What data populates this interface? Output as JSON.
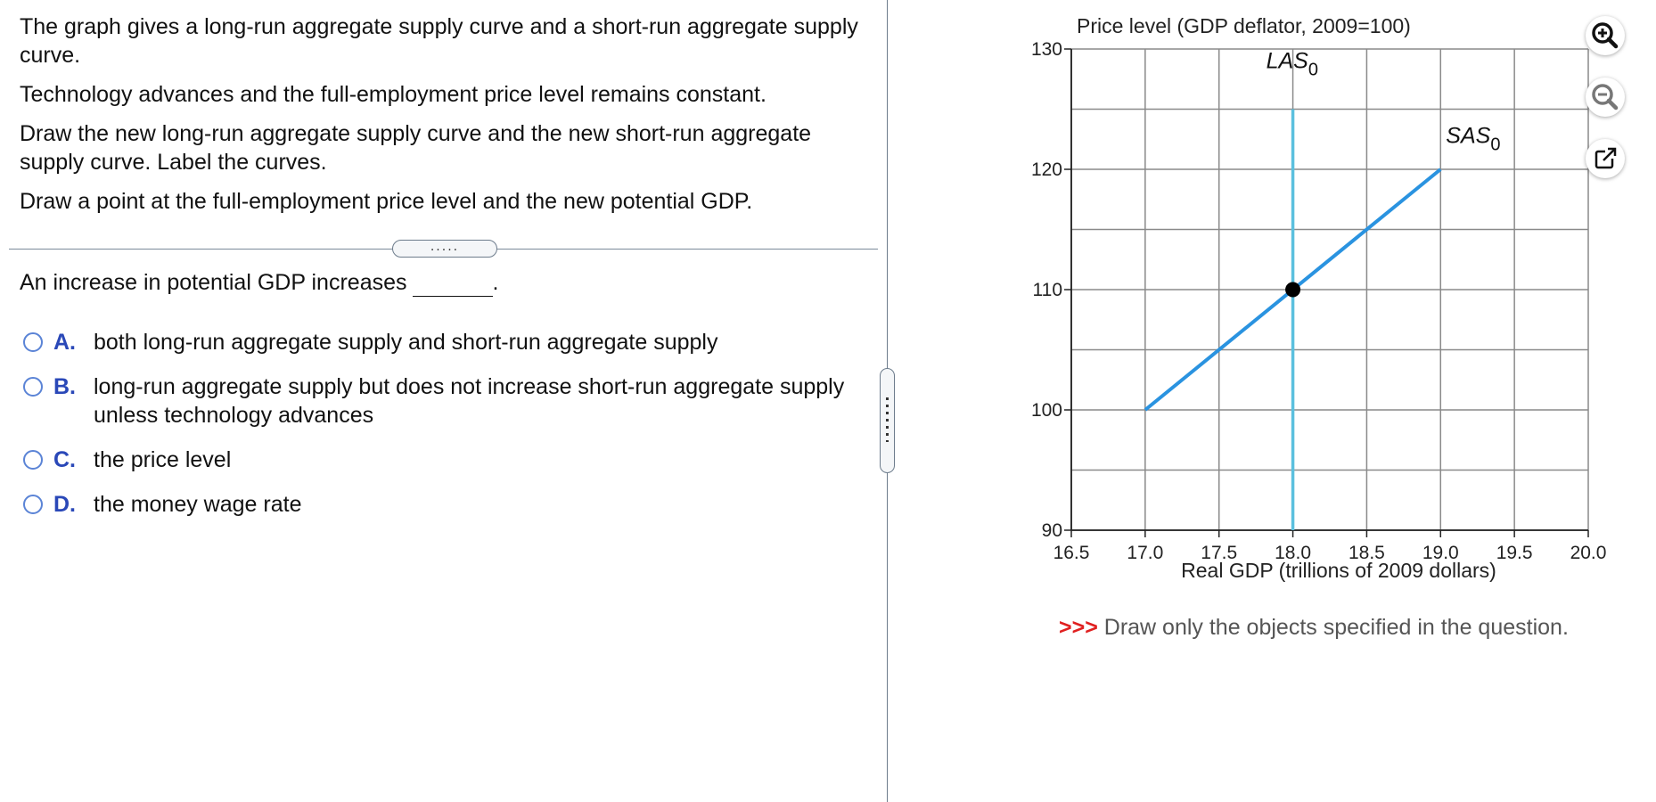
{
  "prompt": {
    "p1": "The graph gives a long-run aggregate supply curve and a short-run aggregate supply curve.",
    "p2": "Technology advances and the full-employment price level remains constant.",
    "p3": "Draw the new long-run aggregate supply curve and the new short-run aggregate supply curve. Label the curves.",
    "p4": "Draw a point at the full-employment price level and the new potential GDP."
  },
  "divider_handle": ".....",
  "question": {
    "stem": "An increase in potential GDP increases",
    "end_punct": "."
  },
  "choices": [
    {
      "letter": "A.",
      "text": "both long-run aggregate supply and short-run aggregate supply"
    },
    {
      "letter": "B.",
      "text": "long-run aggregate supply but does not increase short-run aggregate supply unless technology advances"
    },
    {
      "letter": "C.",
      "text": "the price level"
    },
    {
      "letter": "D.",
      "text": "the money wage rate"
    }
  ],
  "graph_note": {
    "arrow": ">>>",
    "text": "Draw only the objects specified in the question."
  },
  "tools": [
    {
      "icon": "zoom-in-icon"
    },
    {
      "icon": "zoom-out-icon"
    },
    {
      "icon": "popout-icon"
    }
  ],
  "chart_data": {
    "type": "line",
    "title": "",
    "ylabel": "Price level (GDP deflator, 2009=100)",
    "xlabel": "Real GDP (trillions of 2009 dollars)",
    "xlim": [
      16.5,
      20.0
    ],
    "ylim": [
      90,
      130
    ],
    "x_ticks": [
      "16.5",
      "17.0",
      "17.5",
      "18.0",
      "18.5",
      "19.0",
      "19.5",
      "20.0"
    ],
    "y_ticks": [
      "90",
      "100",
      "110",
      "120",
      "130"
    ],
    "grid": true,
    "colors": {
      "las": "#5bc0de",
      "sas": "#2a93e0",
      "point": "#000000"
    },
    "series": [
      {
        "name": "LAS",
        "name_subscript": "0",
        "points": [
          [
            18.0,
            90
          ],
          [
            18.0,
            125
          ]
        ]
      },
      {
        "name": "SAS",
        "name_subscript": "0",
        "points": [
          [
            17.0,
            100
          ],
          [
            19.0,
            120
          ]
        ]
      }
    ],
    "point": {
      "x": 18.0,
      "y": 110
    }
  }
}
